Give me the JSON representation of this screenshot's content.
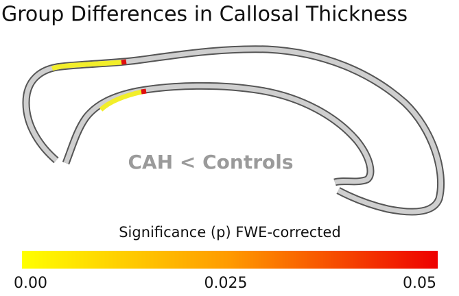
{
  "title": "Group Differences in Callosal Thickness",
  "contrast_label": "CAH < Controls",
  "colorbar": {
    "title": "Significance (p) FWE-corrected",
    "tick_labels": [
      "0.00",
      "0.025",
      "0.05"
    ]
  }
}
